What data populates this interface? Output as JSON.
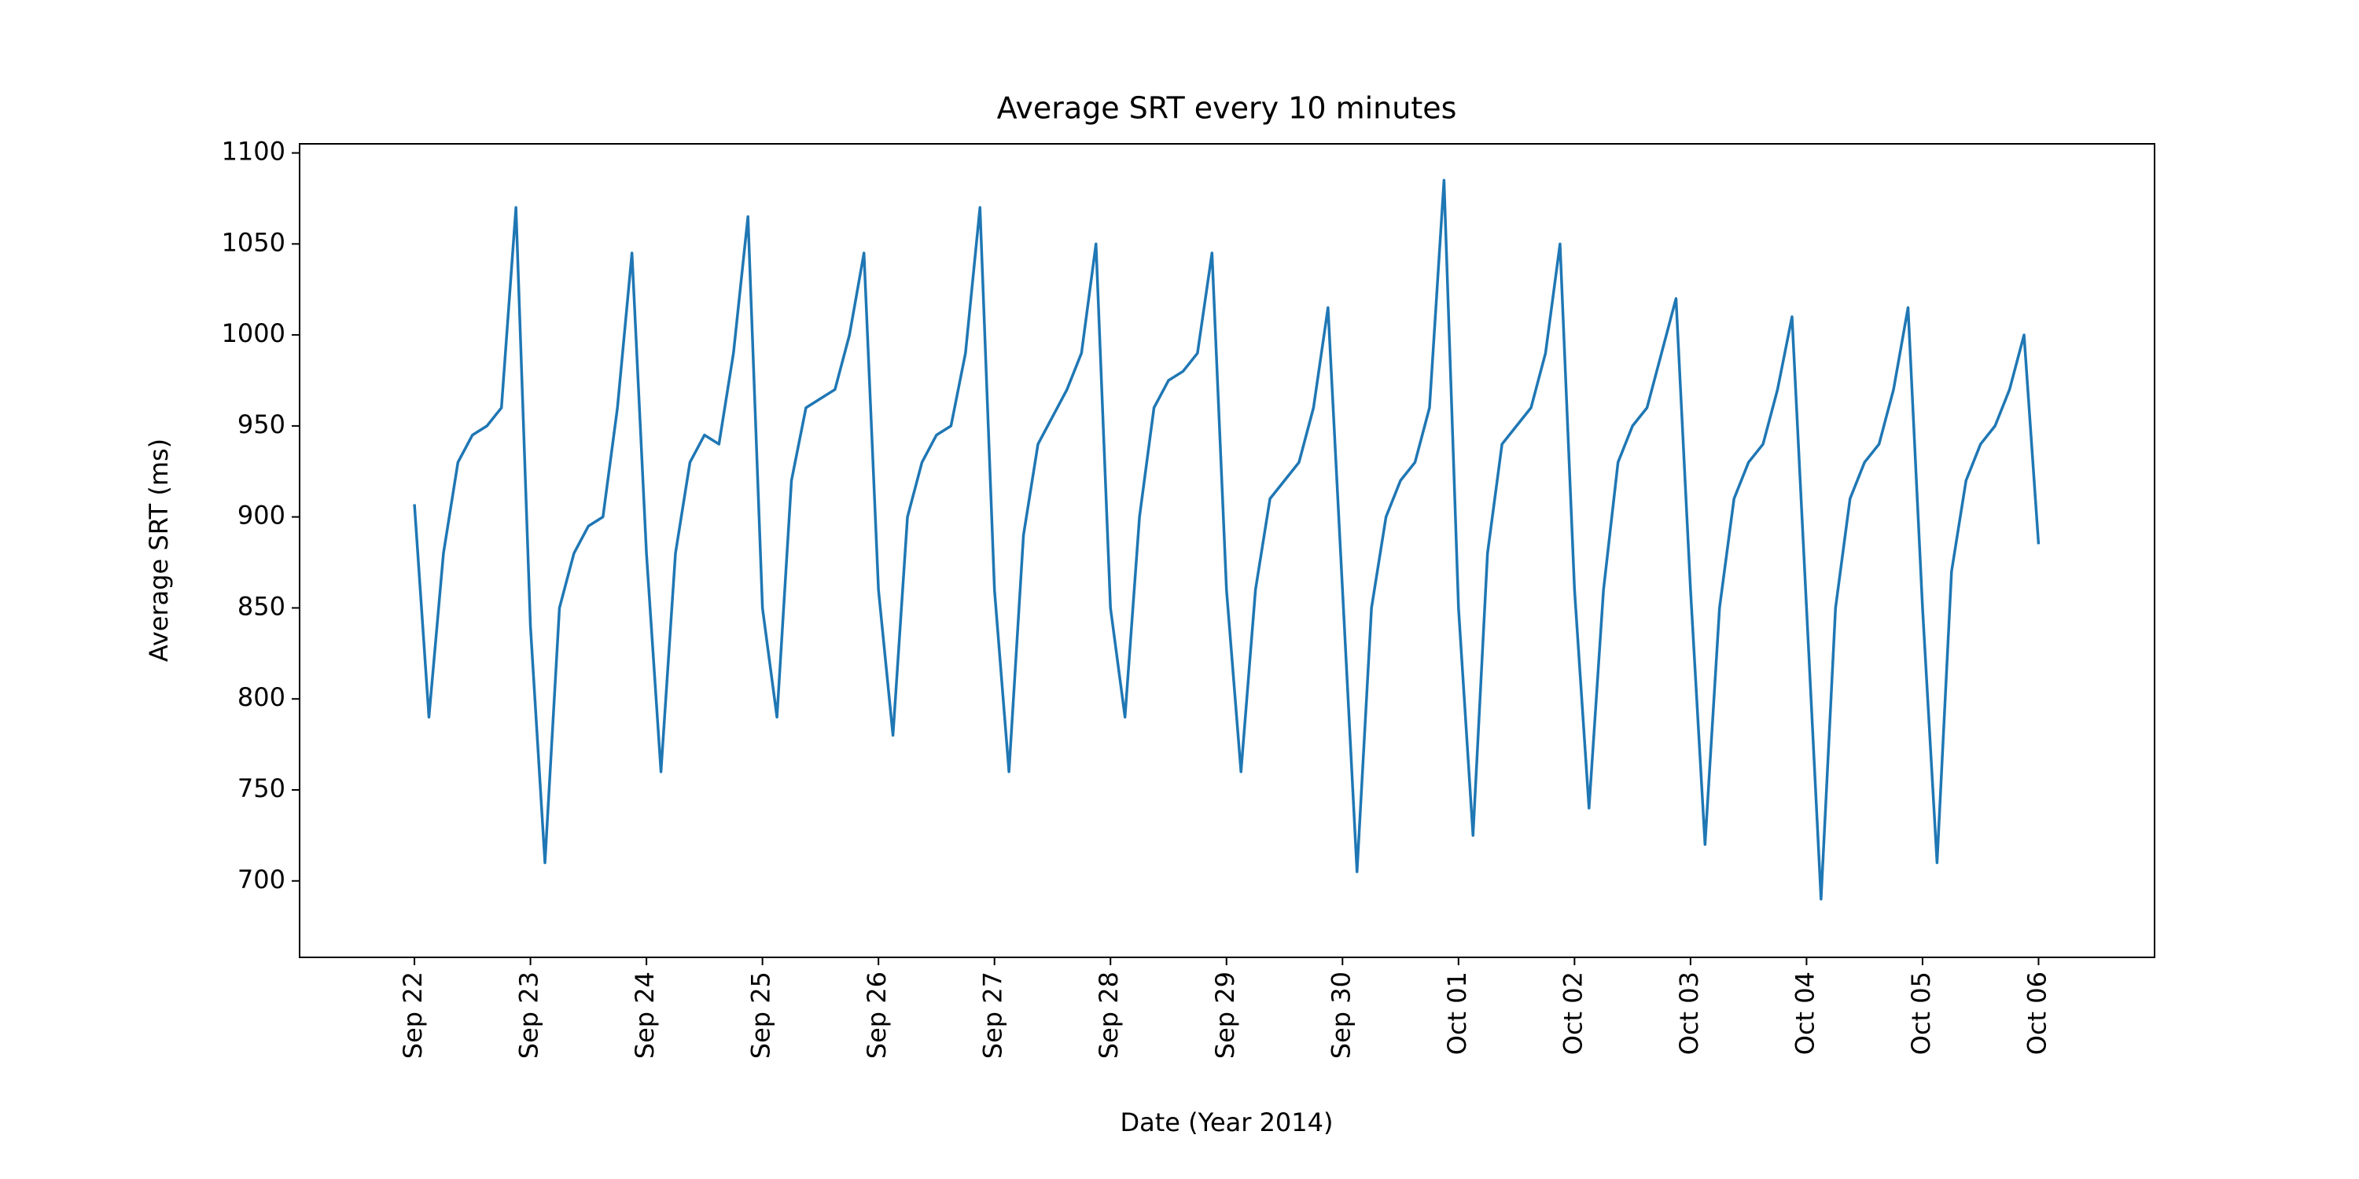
{
  "chart_data": {
    "type": "line",
    "title": "Average SRT every 10 minutes",
    "x_label": "Date (Year 2014)",
    "y_label": "Average SRT (ms)",
    "color": "#1f77b4",
    "xlim": [
      -0.99,
      15.0
    ],
    "ylim": [
      658,
      1105
    ],
    "xticks": [
      {
        "value": 0,
        "label": "Sep 22"
      },
      {
        "value": 1,
        "label": "Sep 23"
      },
      {
        "value": 2,
        "label": "Sep 24"
      },
      {
        "value": 3,
        "label": "Sep 25"
      },
      {
        "value": 4,
        "label": "Sep 26"
      },
      {
        "value": 5,
        "label": "Sep 27"
      },
      {
        "value": 6,
        "label": "Sep 28"
      },
      {
        "value": 7,
        "label": "Sep 29"
      },
      {
        "value": 8,
        "label": "Sep 30"
      },
      {
        "value": 9,
        "label": "Oct 01"
      },
      {
        "value": 10,
        "label": "Oct 02"
      },
      {
        "value": 11,
        "label": "Oct 03"
      },
      {
        "value": 12,
        "label": "Oct 04"
      },
      {
        "value": 13,
        "label": "Oct 05"
      },
      {
        "value": 14,
        "label": "Oct 06"
      }
    ],
    "yticks": [
      700,
      750,
      800,
      850,
      900,
      950,
      1000,
      1050,
      1100
    ],
    "x": [
      0,
      0.125,
      0.25,
      0.375,
      0.5,
      0.625,
      0.75,
      0.875,
      1,
      1.125,
      1.25,
      1.375,
      1.5,
      1.625,
      1.75,
      1.875,
      2,
      2.125,
      2.25,
      2.375,
      2.5,
      2.625,
      2.75,
      2.875,
      3,
      3.125,
      3.25,
      3.375,
      3.5,
      3.625,
      3.75,
      3.875,
      4,
      4.125,
      4.25,
      4.375,
      4.5,
      4.625,
      4.75,
      4.875,
      5,
      5.125,
      5.25,
      5.375,
      5.5,
      5.625,
      5.75,
      5.875,
      6,
      6.125,
      6.25,
      6.375,
      6.5,
      6.625,
      6.75,
      6.875,
      7,
      7.125,
      7.25,
      7.375,
      7.5,
      7.625,
      7.75,
      7.875,
      8,
      8.125,
      8.25,
      8.375,
      8.5,
      8.625,
      8.75,
      8.875,
      9,
      9.125,
      9.25,
      9.375,
      9.5,
      9.625,
      9.75,
      9.875,
      10,
      10.125,
      10.25,
      10.375,
      10.5,
      10.625,
      10.75,
      10.875,
      11,
      11.125,
      11.25,
      11.375,
      11.5,
      11.625,
      11.75,
      11.875,
      12,
      12.125,
      12.25,
      12.375,
      12.5,
      12.625,
      12.75,
      12.875,
      13,
      13.125,
      13.25,
      13.375,
      13.5,
      13.625,
      13.75,
      13.875,
      14
    ],
    "values": [
      907,
      790,
      880,
      930,
      945,
      950,
      960,
      1070,
      840,
      710,
      850,
      880,
      895,
      900,
      960,
      1045,
      880,
      760,
      880,
      930,
      945,
      940,
      990,
      1065,
      850,
      790,
      920,
      960,
      965,
      970,
      1000,
      1045,
      860,
      780,
      900,
      930,
      945,
      950,
      990,
      1070,
      860,
      760,
      890,
      940,
      955,
      970,
      990,
      1050,
      850,
      790,
      900,
      960,
      975,
      980,
      990,
      1045,
      860,
      760,
      860,
      910,
      920,
      930,
      960,
      1015,
      860,
      705,
      850,
      900,
      920,
      930,
      960,
      1085,
      850,
      725,
      880,
      940,
      950,
      960,
      990,
      1050,
      860,
      740,
      860,
      930,
      950,
      960,
      990,
      1020,
      860,
      720,
      850,
      910,
      930,
      940,
      970,
      1010,
      850,
      690,
      850,
      910,
      930,
      940,
      970,
      1015,
      850,
      710,
      870,
      920,
      940,
      950,
      970,
      1000,
      885
    ]
  }
}
